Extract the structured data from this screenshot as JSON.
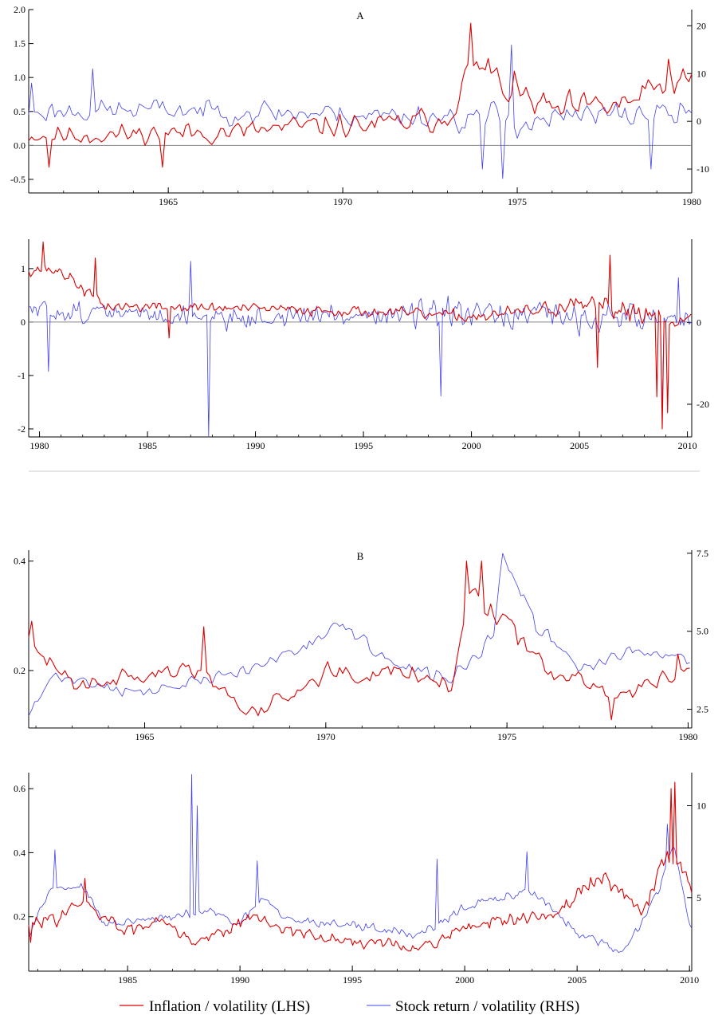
{
  "legend": {
    "inflation": "Inflation / volatility (LHS)",
    "stock": "Stock return / volatility (RHS)"
  },
  "colors": {
    "inflation": "#dd0000",
    "stock": "#4040ee",
    "zero_line": "#888888",
    "separator": "#cccccc"
  },
  "chart_data": [
    {
      "type": "line",
      "id": "A1",
      "title": "A",
      "x_range": [
        1961,
        1980
      ],
      "x_ticks": [
        1965,
        1970,
        1975,
        1980
      ],
      "y_left": {
        "range": [
          -0.7,
          2.0
        ],
        "ticks": [
          -0.5,
          0.0,
          0.5,
          1.0,
          1.5,
          2.0
        ],
        "labels": [
          "-0.5",
          "0.0",
          "0.5",
          "1.0",
          "1.5",
          "2.0"
        ]
      },
      "y_right": {
        "range": [
          -15,
          23.4
        ],
        "ticks": [
          -10,
          0,
          10,
          20
        ],
        "labels": [
          "-10",
          "0",
          "10",
          "20"
        ]
      },
      "zero_line": true,
      "series": [
        {
          "name": "Inflation / volatility (LHS)",
          "axis": "left",
          "anchors": [
            [
              1961,
              0.15
            ],
            [
              1963,
              0.15
            ],
            [
              1965,
              0.18
            ],
            [
              1967,
              0.2
            ],
            [
              1969,
              0.28
            ],
            [
              1971,
              0.3
            ],
            [
              1973,
              0.4
            ],
            [
              1973.7,
              1.2
            ],
            [
              1974.5,
              0.9
            ],
            [
              1976,
              0.5
            ],
            [
              1978,
              0.6
            ],
            [
              1979.6,
              0.95
            ]
          ],
          "amp": [
            [
              1961,
              0.3
            ],
            [
              1973,
              0.35
            ],
            [
              1974,
              0.5
            ],
            [
              1980,
              0.4
            ]
          ],
          "spikes": [
            [
              1961.6,
              -0.32
            ],
            [
              1964.8,
              -0.32
            ],
            [
              1973.7,
              1.8
            ],
            [
              1974.2,
              1.28
            ],
            [
              1979.3,
              1.27
            ]
          ],
          "floor": 0,
          "seed": 11,
          "freq": 12
        },
        {
          "name": "Stock return / volatility (RHS)",
          "axis": "right",
          "anchors": [
            [
              1961,
              2
            ],
            [
              1965,
              2.5
            ],
            [
              1970,
              1.5
            ],
            [
              1973,
              1
            ],
            [
              1975,
              0
            ],
            [
              1978,
              1.5
            ],
            [
              1980,
              1.5
            ]
          ],
          "amp": [
            [
              1961,
              4.5
            ],
            [
              1973,
              5
            ],
            [
              1974,
              7
            ],
            [
              1976,
              5.5
            ],
            [
              1980,
              5
            ]
          ],
          "spikes": [
            [
              1961.1,
              8
            ],
            [
              1962.8,
              11
            ],
            [
              1974,
              -10
            ],
            [
              1974.6,
              -12
            ],
            [
              1974.8,
              16
            ],
            [
              1978.8,
              -10
            ]
          ],
          "seed": 23,
          "freq": 12
        }
      ]
    },
    {
      "type": "line",
      "id": "A2",
      "title": "",
      "x_range": [
        1979.5,
        2010.2
      ],
      "x_ticks": [
        1980,
        1985,
        1990,
        1995,
        2000,
        2005,
        2010
      ],
      "y_left": {
        "range": [
          -2.15,
          1.55
        ],
        "ticks": [
          -2,
          -1,
          0,
          1
        ],
        "labels": [
          "-2",
          "-1",
          "0",
          "1"
        ]
      },
      "y_right": {
        "range": [
          -28,
          20.4
        ],
        "ticks": [
          -20,
          0
        ],
        "labels": [
          "-20",
          "0"
        ]
      },
      "zero_line": true,
      "series": [
        {
          "name": "Inflation / volatility (LHS)",
          "axis": "left",
          "anchors": [
            [
              1979.5,
              1.0
            ],
            [
              1981,
              0.95
            ],
            [
              1983,
              0.3
            ],
            [
              1990,
              0.25
            ],
            [
              1995,
              0.2
            ],
            [
              2000,
              0.1
            ],
            [
              2005,
              0.3
            ],
            [
              2008,
              0.2
            ],
            [
              2010,
              0.0
            ]
          ],
          "amp": [
            [
              1979.5,
              0.25
            ],
            [
              1983,
              0.2
            ],
            [
              1995,
              0.18
            ],
            [
              2003,
              0.25
            ],
            [
              2008,
              0.45
            ],
            [
              2010,
              0.3
            ]
          ],
          "spikes": [
            [
              1980.2,
              1.5
            ],
            [
              1982.6,
              1.2
            ],
            [
              1986,
              -0.3
            ],
            [
              2005.8,
              -0.85
            ],
            [
              2006.4,
              1.25
            ],
            [
              2008.6,
              -1.4
            ],
            [
              2008.8,
              -2.0
            ],
            [
              2009.1,
              -1.7
            ]
          ],
          "seed": 37,
          "freq": 12
        },
        {
          "name": "Stock return / volatility (RHS)",
          "axis": "right",
          "anchors": [
            [
              1979.5,
              3
            ],
            [
              1985,
              2
            ],
            [
              1990,
              1
            ],
            [
              1995,
              2
            ],
            [
              2000,
              1.5
            ],
            [
              2005,
              1.5
            ],
            [
              2010,
              1
            ]
          ],
          "amp": [
            [
              1979.5,
              5
            ],
            [
              1990,
              5
            ],
            [
              2000,
              7
            ],
            [
              2008,
              7
            ],
            [
              2010,
              6
            ]
          ],
          "spikes": [
            [
              1980.4,
              -12
            ],
            [
              1987.0,
              15
            ],
            [
              1987.8,
              -28
            ],
            [
              1998.6,
              -18
            ],
            [
              2008.8,
              -22
            ],
            [
              2009.6,
              11
            ]
          ],
          "seed": 51,
          "freq": 12
        }
      ]
    },
    {
      "type": "line",
      "id": "B1",
      "title": "B",
      "x_range": [
        1961.8,
        1980.1
      ],
      "x_ticks": [
        1965,
        1970,
        1975,
        1980
      ],
      "y_left": {
        "range": [
          0.095,
          0.42
        ],
        "ticks": [
          0.2,
          0.4
        ],
        "labels": [
          "0.2",
          "0.4"
        ]
      },
      "y_right": {
        "range": [
          1.9,
          7.6
        ],
        "ticks": [
          2.5,
          5.0,
          7.5
        ],
        "labels": [
          "2.5",
          "5.0",
          "7.5"
        ]
      },
      "zero_line": false,
      "series": [
        {
          "name": "Inflation / volatility (LHS)",
          "axis": "left",
          "anchors": [
            [
              1961.8,
              0.25
            ],
            [
              1963,
              0.18
            ],
            [
              1966.5,
              0.2
            ],
            [
              1968,
              0.12
            ],
            [
              1970,
              0.2
            ],
            [
              1972,
              0.2
            ],
            [
              1973.5,
              0.18
            ],
            [
              1974,
              0.34
            ],
            [
              1975,
              0.3
            ],
            [
              1976,
              0.21
            ],
            [
              1978,
              0.15
            ],
            [
              1979.8,
              0.2
            ]
          ],
          "amp": [
            [
              1961.8,
              0.035
            ],
            [
              1973,
              0.035
            ],
            [
              1974,
              0.06
            ],
            [
              1976,
              0.035
            ],
            [
              1980,
              0.03
            ]
          ],
          "spikes": [
            [
              1961.9,
              0.29
            ],
            [
              1966.6,
              0.28
            ],
            [
              1973.9,
              0.4
            ],
            [
              1974.3,
              0.4
            ],
            [
              1977.9,
              0.11
            ],
            [
              1979.7,
              0.23
            ]
          ],
          "seed": 63,
          "freq": 12
        },
        {
          "name": "Stock return / volatility (RHS)",
          "axis": "right",
          "anchors": [
            [
              1961.8,
              2.3
            ],
            [
              1962.5,
              3.6
            ],
            [
              1965,
              3
            ],
            [
              1968,
              3.8
            ],
            [
              1970.5,
              5.2
            ],
            [
              1972,
              3.8
            ],
            [
              1973.5,
              3.5
            ],
            [
              1974.6,
              4.8
            ],
            [
              1974.9,
              7.3
            ],
            [
              1975.8,
              5.2
            ],
            [
              1977,
              3.8
            ],
            [
              1978.5,
              4.4
            ],
            [
              1979.9,
              4.1
            ]
          ],
          "amp": [
            [
              1961.8,
              0.35
            ],
            [
              1975,
              0.5
            ],
            [
              1980,
              0.3
            ]
          ],
          "spikes": [
            [
              1974.85,
              7.5
            ]
          ],
          "seed": 71,
          "freq": 12
        }
      ]
    },
    {
      "type": "line",
      "id": "B2",
      "title": "",
      "x_range": [
        1980.6,
        2010.1
      ],
      "x_ticks": [
        1985,
        1990,
        1995,
        2000,
        2005,
        2010
      ],
      "y_left": {
        "range": [
          0.03,
          0.65
        ],
        "ticks": [
          0.2,
          0.4,
          0.6
        ],
        "labels": [
          "0.2",
          "0.4",
          "0.6"
        ]
      },
      "y_right": {
        "range": [
          1.0,
          11.8
        ],
        "ticks": [
          5,
          10
        ],
        "labels": [
          "5",
          "10"
        ]
      },
      "zero_line": false,
      "series": [
        {
          "name": "Inflation / volatility (LHS)",
          "axis": "left",
          "anchors": [
            [
              1980.6,
              0.17
            ],
            [
              1983,
              0.24
            ],
            [
              1985,
              0.15
            ],
            [
              1986.5,
              0.2
            ],
            [
              1988,
              0.12
            ],
            [
              1990.5,
              0.2
            ],
            [
              1993,
              0.14
            ],
            [
              1998,
              0.1
            ],
            [
              2000,
              0.17
            ],
            [
              2004,
              0.2
            ],
            [
              2006,
              0.33
            ],
            [
              2008,
              0.22
            ],
            [
              2009,
              0.4
            ],
            [
              2010,
              0.3
            ]
          ],
          "amp": [
            [
              1980.6,
              0.045
            ],
            [
              1995,
              0.035
            ],
            [
              2005,
              0.05
            ],
            [
              2010,
              0.06
            ]
          ],
          "spikes": [
            [
              1980.7,
              0.12
            ],
            [
              1983.1,
              0.32
            ],
            [
              2009.15,
              0.6
            ],
            [
              2009.35,
              0.62
            ]
          ],
          "seed": 83,
          "freq": 12
        },
        {
          "name": "Stock return / volatility (RHS)",
          "axis": "right",
          "anchors": [
            [
              1980.6,
              3
            ],
            [
              1981.5,
              5.5
            ],
            [
              1983,
              5.6
            ],
            [
              1984,
              3.5
            ],
            [
              1986,
              3.8
            ],
            [
              1987.5,
              4
            ],
            [
              1988.6,
              4.3
            ],
            [
              1990,
              3.5
            ],
            [
              1991,
              5
            ],
            [
              1992,
              3.8
            ],
            [
              1995,
              3.5
            ],
            [
              1998,
              3
            ],
            [
              2000,
              4.5
            ],
            [
              2002,
              5
            ],
            [
              2003,
              5.5
            ],
            [
              2005,
              3
            ],
            [
              2007,
              2
            ],
            [
              2008.5,
              5
            ],
            [
              2009.3,
              8
            ],
            [
              2010,
              3.5
            ]
          ],
          "amp": [
            [
              1980.6,
              0.35
            ],
            [
              2000,
              0.6
            ],
            [
              2010,
              0.5
            ]
          ],
          "spikes": [
            [
              1981.8,
              7.6
            ],
            [
              1987.85,
              11.7
            ],
            [
              1988.1,
              10
            ],
            [
              1990.8,
              7
            ],
            [
              1998.8,
              7.1
            ],
            [
              2002.8,
              7.5
            ],
            [
              2009.0,
              9
            ]
          ],
          "seed": 97,
          "freq": 12
        }
      ]
    }
  ]
}
